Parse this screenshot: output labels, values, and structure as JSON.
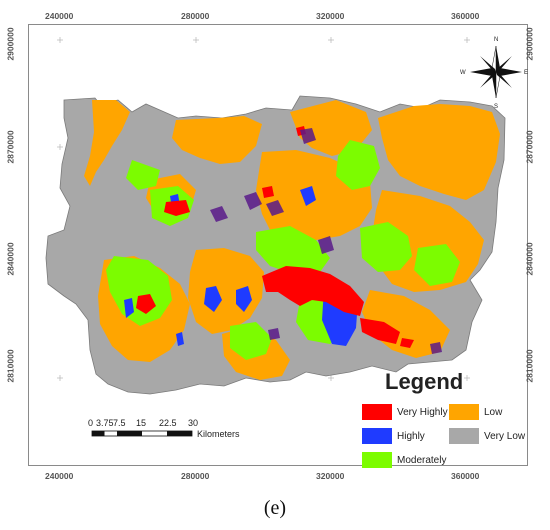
{
  "map": {
    "x_ticks": [
      "240000",
      "280000",
      "320000",
      "360000"
    ],
    "y_ticks": [
      "2900000",
      "2870000",
      "2840000",
      "2810000"
    ]
  },
  "compass": {
    "n": "N",
    "s": "S",
    "e": "E",
    "w": "W"
  },
  "scale_bar": {
    "labels": [
      "0",
      "3.75",
      "7.5",
      "15",
      "22.5",
      "30"
    ],
    "unit": "Kilometers"
  },
  "legend": {
    "title": "Legend",
    "items": [
      {
        "label": "Very Highly",
        "color": "#ff0000"
      },
      {
        "label": "Low",
        "color": "#ffa500"
      },
      {
        "label": "Highly",
        "color": "#1f3bff"
      },
      {
        "label": "Very Low",
        "color": "#a8a8a8"
      },
      {
        "label": "Moderately",
        "color": "#7cfc00"
      }
    ]
  },
  "caption": "(e)"
}
